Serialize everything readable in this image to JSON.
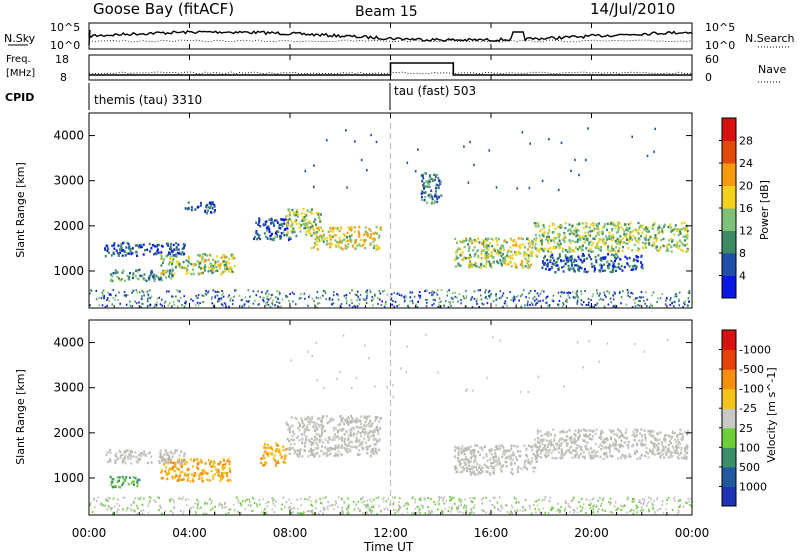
{
  "header": {
    "station": "Goose Bay (fitACF)",
    "beam": "Beam 15",
    "date": "14/Jul/2010"
  },
  "noise_panel": {
    "left_label": "N.Sky",
    "left_ticks": [
      "10^5",
      "10^0"
    ],
    "right_ticks": [
      "10^5",
      "10^0"
    ],
    "right_label": "N.Search"
  },
  "freq_panel": {
    "left_label_1": "Freq.",
    "left_label_2": "[MHz]",
    "left_ticks": [
      "18",
      "8"
    ],
    "right_ticks": [
      "60",
      "0"
    ],
    "right_label": "Nave"
  },
  "cpid": {
    "label": "CPID",
    "segments": [
      {
        "text": "themis (tau) 3310",
        "start_h": 0
      },
      {
        "text": "tau (fast) 503",
        "start_h": 12
      }
    ]
  },
  "x_axis": {
    "ticks": [
      "00:00",
      "04:00",
      "08:00",
      "12:00",
      "16:00",
      "20:00",
      "00:00"
    ],
    "label": "Time UT"
  },
  "chart_data": [
    {
      "type": "heatmap",
      "name": "power",
      "ylabel": "Slant Range [km]",
      "yticks": [
        1000,
        2000,
        3000,
        4000
      ],
      "ylim": [
        180,
        4500
      ],
      "xlim": [
        0,
        24
      ],
      "colorbar": {
        "label": "Power [dB]",
        "ticks": [
          "4",
          "8",
          "12",
          "16",
          "20",
          "24",
          "28"
        ],
        "colors": [
          "#0a18e6",
          "#1f4fa8",
          "#3b8a62",
          "#7ec27a",
          "#f2d21b",
          "#f59a0c",
          "#e24a0a",
          "#d8110e"
        ]
      },
      "regions": [
        {
          "t0": 0.8,
          "t1": 3.3,
          "r0": 800,
          "r1": 1050,
          "v": 0.35
        },
        {
          "t0": 2.8,
          "t1": 5.8,
          "r0": 950,
          "r1": 1400,
          "v": 0.55
        },
        {
          "t0": 0.6,
          "t1": 3.8,
          "r0": 1350,
          "r1": 1650,
          "v": 0.15
        },
        {
          "t0": 3.8,
          "t1": 5.0,
          "r0": 2300,
          "r1": 2550,
          "v": 0.1
        },
        {
          "t0": 6.5,
          "t1": 8.0,
          "r0": 1700,
          "r1": 2200,
          "v": 0.2
        },
        {
          "t0": 7.8,
          "t1": 9.2,
          "r0": 1800,
          "r1": 2400,
          "v": 0.5
        },
        {
          "t0": 8.8,
          "t1": 11.6,
          "r0": 1500,
          "r1": 2000,
          "v": 0.65
        },
        {
          "t0": 13.2,
          "t1": 14.0,
          "r0": 2500,
          "r1": 3200,
          "v": 0.3
        },
        {
          "t0": 14.5,
          "t1": 17.8,
          "r0": 1100,
          "r1": 1750,
          "v": 0.55
        },
        {
          "t0": 17.7,
          "t1": 23.8,
          "r0": 1450,
          "r1": 2100,
          "v": 0.5
        },
        {
          "t0": 18.0,
          "t1": 22.0,
          "r0": 1000,
          "r1": 1400,
          "v": 0.2
        }
      ]
    },
    {
      "type": "heatmap",
      "name": "velocity",
      "ylabel": "Slant Range [km]",
      "yticks": [
        1000,
        2000,
        3000,
        4000
      ],
      "ylim": [
        180,
        4500
      ],
      "xlim": [
        0,
        24
      ],
      "colorbar": {
        "label": "Velocity [m s^-1]",
        "ticks": [
          "1000",
          "500",
          "100",
          "25",
          "-25",
          "-100",
          "-500",
          "-1000"
        ],
        "colors": [
          "#1f33b5",
          "#1f5aa0",
          "#3a8f6a",
          "#6ccf3a",
          "#c8c8c4",
          "#f5c218",
          "#f5900c",
          "#e8400a",
          "#d8110e"
        ]
      },
      "regions": [
        {
          "t0": 0.8,
          "t1": 2.0,
          "r0": 800,
          "r1": 1050,
          "v": "green"
        },
        {
          "t0": 2.8,
          "t1": 5.6,
          "r0": 950,
          "r1": 1450,
          "v": "orange"
        },
        {
          "t0": 6.8,
          "t1": 7.8,
          "r0": 1300,
          "r1": 1800,
          "v": "orange"
        },
        {
          "t0": 0.6,
          "t1": 3.8,
          "r0": 1350,
          "r1": 1650,
          "v": "grey"
        },
        {
          "t0": 7.8,
          "t1": 11.6,
          "r0": 1500,
          "r1": 2400,
          "v": "grey"
        },
        {
          "t0": 14.5,
          "t1": 17.8,
          "r0": 1100,
          "r1": 1750,
          "v": "grey"
        },
        {
          "t0": 17.7,
          "t1": 23.8,
          "r0": 1450,
          "r1": 2100,
          "v": "grey"
        }
      ]
    }
  ]
}
